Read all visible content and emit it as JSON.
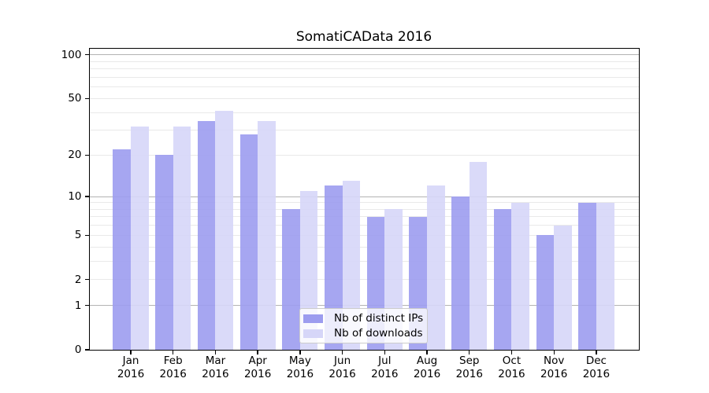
{
  "chart_data": {
    "type": "bar",
    "title": "SomatiCAData 2016",
    "year": "2016",
    "categories": [
      "Jan",
      "Feb",
      "Mar",
      "Apr",
      "May",
      "Jun",
      "Jul",
      "Aug",
      "Sep",
      "Oct",
      "Nov",
      "Dec"
    ],
    "series": [
      {
        "name": "Nb of distinct IPs",
        "color": "#9c9cef",
        "values": [
          22,
          20,
          35,
          28,
          8,
          12,
          7,
          7,
          10,
          8,
          5,
          9
        ]
      },
      {
        "name": "Nb of downloads",
        "color": "#d6d6f8",
        "values": [
          32,
          32,
          41,
          35,
          11,
          13,
          8,
          12,
          18,
          9,
          6,
          9
        ]
      }
    ],
    "xlabel": "",
    "ylabel": "",
    "y_axis": {
      "scale": "log10(1+x)",
      "tick_labels": [
        100,
        50,
        20,
        10,
        5,
        2,
        1,
        0
      ],
      "major_gridlines": [
        1,
        10,
        100
      ],
      "minor_gridlines": [
        2,
        3,
        4,
        5,
        6,
        7,
        8,
        9,
        20,
        30,
        40,
        50,
        60,
        70,
        80,
        90
      ],
      "ylim": [
        0,
        112
      ]
    },
    "grid": true,
    "legend_position": "lower center",
    "colors": {
      "major_grid": "#b3b3b3",
      "minor_grid": "#e9e9e9",
      "axis": "#000000",
      "background": "#ffffff"
    }
  }
}
